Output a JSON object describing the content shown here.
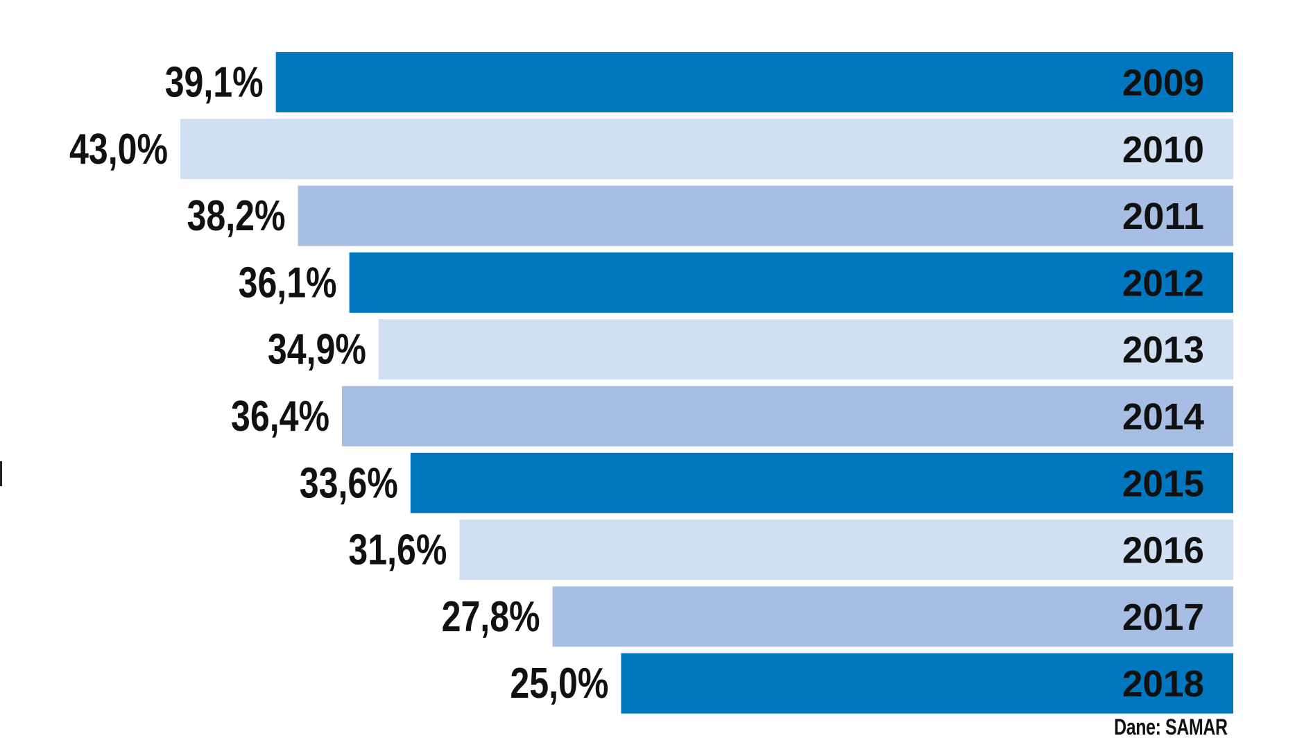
{
  "chart_data": {
    "type": "bar",
    "orientation": "horizontal",
    "categories": [
      "2009",
      "2010",
      "2011",
      "2012",
      "2013",
      "2014",
      "2015",
      "2016",
      "2017",
      "2018"
    ],
    "values": [
      39.1,
      43.0,
      38.2,
      36.1,
      34.9,
      36.4,
      33.6,
      31.6,
      27.8,
      25.0
    ],
    "value_labels": [
      "39,1%",
      "43,0%",
      "38,2%",
      "36,1%",
      "34,9%",
      "36,4%",
      "33,6%",
      "31,6%",
      "27,8%",
      "25,0%"
    ],
    "bar_colors": [
      "#0077bf",
      "#d0dff2",
      "#a7bde3",
      "#0077bf",
      "#d0dff2",
      "#a7bde3",
      "#0077bf",
      "#d0dff2",
      "#a7bde3",
      "#0077bf"
    ],
    "bars_anchored": "right",
    "xlim": [
      0,
      43.0
    ],
    "title": "",
    "xlabel": "",
    "ylabel": ""
  },
  "source": "Dane: SAMAR",
  "colors": {
    "dark_blue": "#0077bf",
    "light_blue": "#d0dff2",
    "medium_blue": "#a7bde3",
    "text": "#111111"
  }
}
